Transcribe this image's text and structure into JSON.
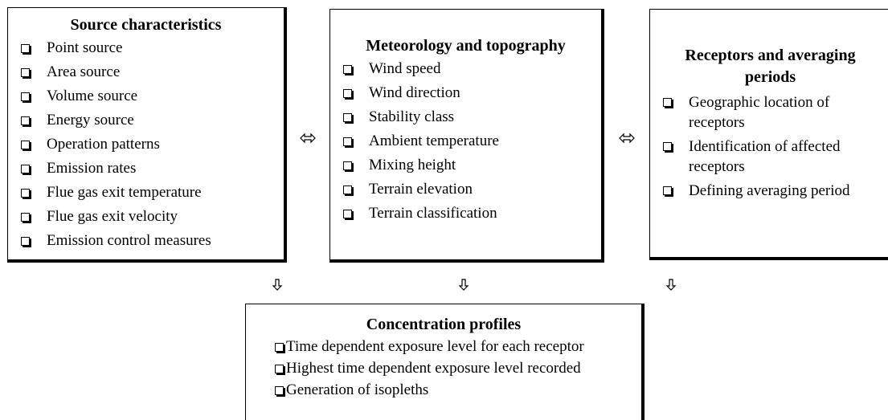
{
  "boxes": [
    {
      "title": "Source characteristics",
      "items": [
        "Point source",
        "Area source",
        "Volume source",
        "Energy source",
        "Operation patterns",
        "Emission rates",
        "Flue gas exit temperature",
        "Flue gas exit velocity",
        "Emission control measures"
      ]
    },
    {
      "title": "Meteorology and topography",
      "items": [
        "Wind speed",
        "Wind direction",
        "Stability class",
        "Ambient temperature",
        "Mixing height",
        "Terrain elevation",
        "Terrain classification"
      ]
    },
    {
      "title": "Receptors and averaging periods",
      "items": [
        "Geographic location of receptors",
        "Identification of affected receptors",
        "Defining averaging period"
      ]
    },
    {
      "title": "Concentration profiles",
      "items": [
        "Time dependent exposure level for each receptor",
        "Highest time dependent exposure level recorded",
        "Generation of isopleths"
      ]
    }
  ]
}
